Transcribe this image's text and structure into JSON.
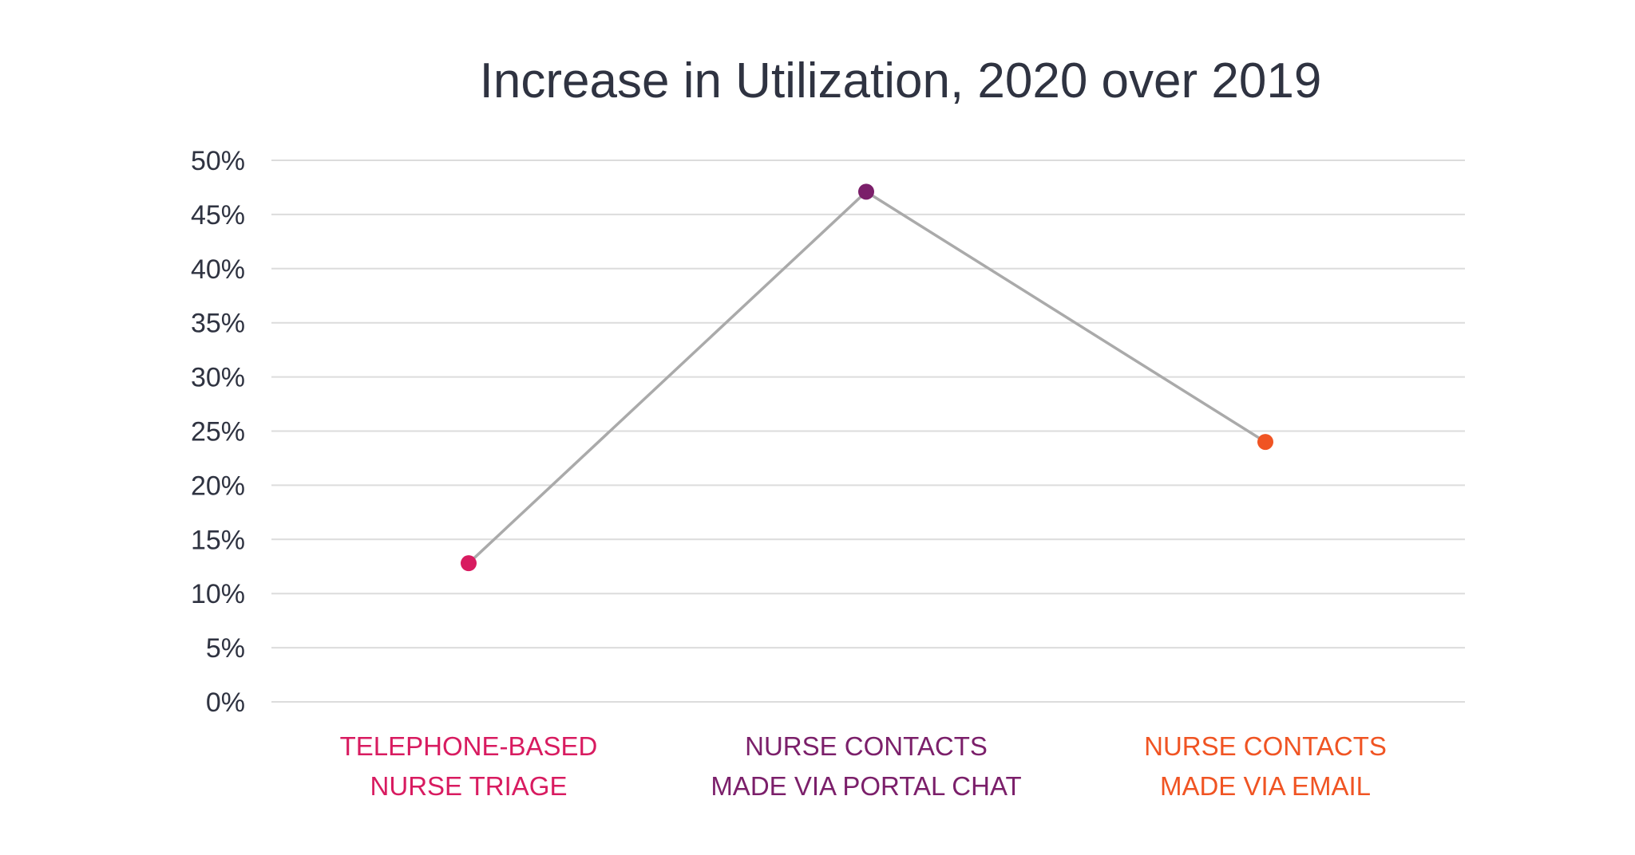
{
  "chart_data": {
    "type": "line",
    "title": "Increase in Utilization, 2020 over 2019",
    "xlabel": "",
    "ylabel": "",
    "ylim": [
      0,
      50
    ],
    "y_ticks": [
      "50%",
      "45%",
      "40%",
      "35%",
      "30%",
      "25%",
      "20%",
      "15%",
      "10%",
      "5%",
      "0%"
    ],
    "y_tick_values": [
      50,
      45,
      40,
      35,
      30,
      25,
      20,
      15,
      10,
      5,
      0
    ],
    "grid": true,
    "legend": "none",
    "categories": [
      {
        "lines": [
          "TELEPHONE-BASED",
          "NURSE TRIAGE"
        ],
        "color": "#d81b60"
      },
      {
        "lines": [
          "NURSE CONTACTS",
          "MADE VIA PORTAL CHAT"
        ],
        "color": "#7b1f6a"
      },
      {
        "lines": [
          "NURSE CONTACTS",
          "MADE VIA EMAIL"
        ],
        "color": "#f05423"
      }
    ],
    "series": [
      {
        "values": [
          12.8,
          47.1,
          24
        ],
        "line_color": "#aaaaaa"
      }
    ]
  }
}
